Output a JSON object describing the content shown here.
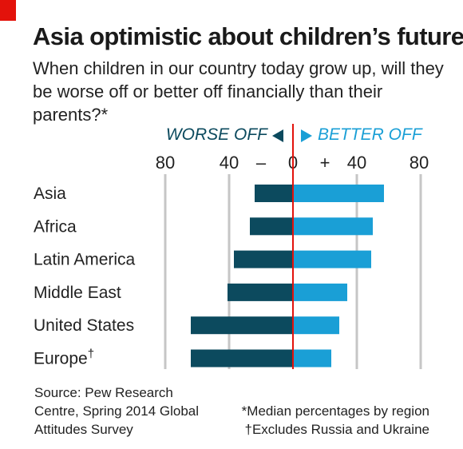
{
  "brand": {
    "accent": "#e3120b"
  },
  "title": "Asia optimistic about children’s futures",
  "subtitle": "When children in our country today grow up, will they be worse off or better off financially than their parents?*",
  "legend": {
    "worse": "WORSE OFF",
    "better": "BETTER OFF",
    "worse_color": "#0c4a5e",
    "better_color": "#1a9fd6"
  },
  "axis": {
    "ticks": [
      "80",
      "40",
      "–",
      "0",
      "+",
      "40",
      "80"
    ]
  },
  "chart_data": {
    "type": "bar",
    "orientation": "horizontal-diverging",
    "categories": [
      "Asia",
      "Africa",
      "Latin America",
      "Middle East",
      "United States",
      "Europe"
    ],
    "category_marks": [
      "",
      "",
      "",
      "",
      "",
      "†"
    ],
    "series": [
      {
        "name": "WORSE OFF",
        "values": [
          24,
          27,
          37,
          41,
          64,
          64
        ],
        "color": "#0c4a5e"
      },
      {
        "name": "BETTER OFF",
        "values": [
          57,
          50,
          49,
          34,
          29,
          24
        ],
        "color": "#1a9fd6"
      }
    ],
    "xlim": [
      -80,
      80
    ],
    "gridlines": [
      -80,
      -40,
      0,
      40,
      80
    ],
    "grid": true
  },
  "source": "Source: Pew Research Centre, Spring 2014 Global Attitudes Survey",
  "notes": [
    "*Median percentages by region",
    "†Excludes Russia and Ukraine"
  ]
}
